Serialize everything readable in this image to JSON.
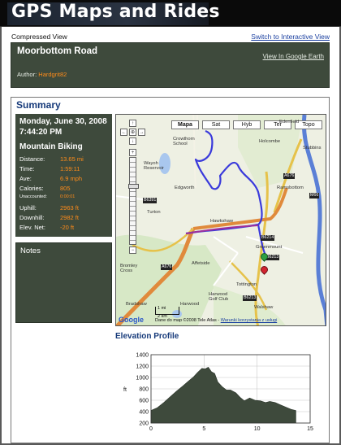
{
  "site": {
    "title": "GPS Maps and Rides"
  },
  "view": {
    "compressed_label": "Compressed View",
    "switch_label": "Switch to Interactive View"
  },
  "route": {
    "name": "Moorbottom Road",
    "google_earth_label": "View In Google Earth",
    "author_label": "Author:",
    "author_name": "Hardgrit82"
  },
  "summary": {
    "title": "Summary",
    "date": "Monday, June 30, 2008 7:44:20 PM",
    "activity": "Mountain Biking",
    "stats": [
      {
        "label": "Distance:",
        "value": "13.65 mi"
      },
      {
        "label": "Time:",
        "value": "1:59:11"
      },
      {
        "label": "Ave:",
        "value": "6.9 mph"
      },
      {
        "label": "Calories:",
        "value": "805"
      },
      {
        "label": "Unaccounted:",
        "value": "0:00:01"
      },
      {
        "label": "Uphill:",
        "value": "2963 ft"
      },
      {
        "label": "Downhill:",
        "value": "2982 ft"
      },
      {
        "label": "Elev. Net:",
        "value": "-20 ft"
      }
    ],
    "notes_title": "Notes"
  },
  "map": {
    "type_buttons": [
      "Mapa",
      "Sat",
      "Hyb",
      "Ter",
      "Topo"
    ],
    "selected_type": "Mapa",
    "nav_controls": [
      "↑",
      "←",
      "⊕",
      "→",
      "↓",
      "+",
      "−"
    ],
    "scale_labels": [
      "1 mi",
      "2 km"
    ],
    "attribution": "Dane do map ©2008 Tele Atlas -",
    "terms_link": "Warunki korzystania z usługi",
    "logo": "Google",
    "places": [
      {
        "name": "Edenfield"
      },
      {
        "name": "Crowthorn School"
      },
      {
        "name": "Holcombe"
      },
      {
        "name": "Stubbins"
      },
      {
        "name": "Ramsbottom"
      },
      {
        "name": "Edgworth"
      },
      {
        "name": "Wayoh Reservoir"
      },
      {
        "name": "Turton"
      },
      {
        "name": "Hawkshaw"
      },
      {
        "name": "Greenmount"
      },
      {
        "name": "Affetside"
      },
      {
        "name": "Bromley Cross"
      },
      {
        "name": "Tottington"
      },
      {
        "name": "Harwood Golf Club"
      },
      {
        "name": "Bradshaw"
      },
      {
        "name": "Harwood"
      },
      {
        "name": "Walshaw"
      }
    ],
    "roads": [
      "A676",
      "A676",
      "B6391",
      "B6214",
      "B6213",
      "B6213",
      "M66"
    ],
    "icons": {
      "start_marker": "start-flag-icon",
      "end_marker": "end-flag-icon"
    },
    "colors": {
      "route": "#3a3adb",
      "road_major": "#e08a3c",
      "motorway": "#5a7fd6"
    }
  },
  "elevation": {
    "title": "Elevation Profile",
    "chart_data": {
      "type": "area",
      "title": "",
      "xlabel": "",
      "ylabel": "ft",
      "xlim": [
        0,
        15
      ],
      "ylim": [
        200,
        1400
      ],
      "xticks": [
        0,
        5,
        10,
        15
      ],
      "yticks": [
        200,
        400,
        600,
        800,
        1000,
        1200,
        1400
      ],
      "grid": true,
      "fill_color": "#3e4a3c",
      "x": [
        0,
        0.6,
        1.2,
        1.8,
        2.4,
        3.0,
        3.5,
        4.0,
        4.4,
        4.8,
        5.1,
        5.4,
        5.7,
        6.0,
        6.3,
        6.7,
        7.1,
        7.5,
        8.0,
        8.4,
        8.8,
        9.3,
        9.8,
        10.3,
        10.8,
        11.2,
        11.7,
        12.2,
        12.7,
        13.2,
        13.65
      ],
      "y": [
        420,
        470,
        560,
        660,
        760,
        850,
        930,
        1010,
        1090,
        1160,
        1150,
        1180,
        1100,
        1070,
        920,
        840,
        780,
        780,
        730,
        650,
        590,
        640,
        600,
        590,
        560,
        580,
        560,
        520,
        480,
        440,
        420
      ]
    }
  }
}
